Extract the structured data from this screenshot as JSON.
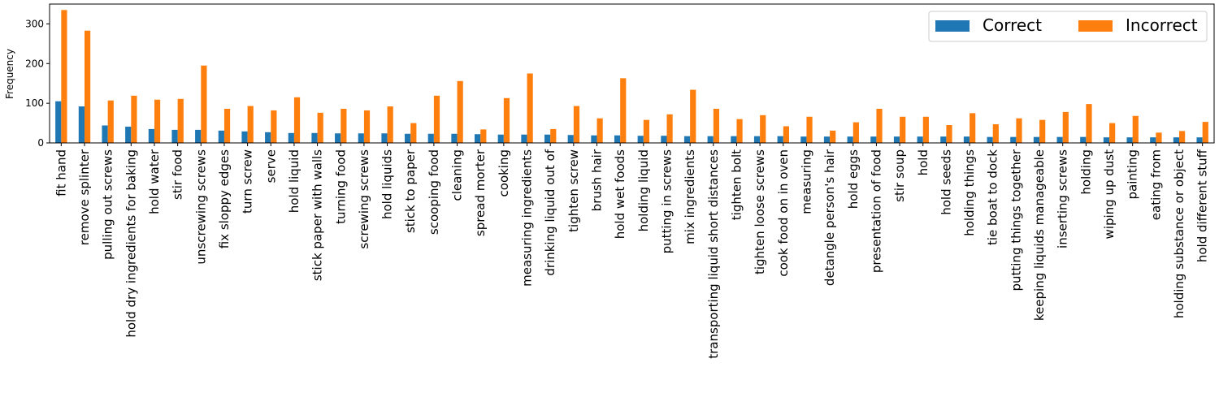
{
  "chart_data": {
    "type": "bar",
    "title": "",
    "xlabel": "",
    "ylabel": "Frequency",
    "ylim": [
      0,
      350
    ],
    "yticks": [
      0,
      100,
      200,
      300
    ],
    "grid": false,
    "legend_position": "top-right",
    "categories": [
      "fit hand",
      "remove splinter",
      "pulling out screws",
      "hold dry ingredients for baking",
      "hold water",
      "stir food",
      "unscrewing screws",
      "fix sloppy edges",
      "turn screw",
      "serve",
      "hold liquid",
      "stick paper with walls",
      "turning food",
      "screwing screws",
      "hold liquids",
      "stick to paper",
      "scooping food",
      "cleaning",
      "spread morter",
      "cooking",
      "measuring ingredients",
      "drinking liquid out of",
      "tighten screw",
      "brush hair",
      "hold wet foods",
      "holding liquid",
      "putting in screws",
      "mix ingredients",
      "transporting liquid short distances",
      "tighten bolt",
      "tighten loose screws",
      "cook food on in oven",
      "measuring",
      "detangle person's hair",
      "hold eggs",
      "presentation of food",
      "stir soup",
      "hold",
      "hold seeds",
      "holding things",
      "tie boat to dock",
      "putting things together",
      "keeping liquids manageable",
      "inserting screws",
      "holding",
      "wiping up dust",
      "painting",
      "eating from",
      "holding substance or object",
      "hold different stuff"
    ],
    "series": [
      {
        "name": "Correct",
        "color": "#1f77b4",
        "values": [
          105,
          92,
          44,
          41,
          35,
          33,
          33,
          31,
          29,
          27,
          25,
          25,
          24,
          24,
          24,
          23,
          23,
          23,
          22,
          21,
          21,
          21,
          20,
          19,
          19,
          18,
          18,
          17,
          17,
          17,
          17,
          17,
          16,
          16,
          16,
          16,
          16,
          16,
          16,
          16,
          15,
          15,
          15,
          15,
          15,
          14,
          14,
          14,
          14,
          14
        ]
      },
      {
        "name": "Incorrect",
        "color": "#ff7f0e",
        "values": [
          335,
          283,
          107,
          119,
          109,
          111,
          195,
          86,
          93,
          82,
          115,
          76,
          86,
          82,
          92,
          50,
          119,
          156,
          34,
          113,
          175,
          35,
          93,
          62,
          163,
          58,
          72,
          134,
          86,
          60,
          70,
          42,
          66,
          31,
          52,
          86,
          66,
          66,
          45,
          75,
          47,
          62,
          58,
          78,
          98,
          50,
          68,
          26,
          30,
          53
        ]
      }
    ]
  }
}
